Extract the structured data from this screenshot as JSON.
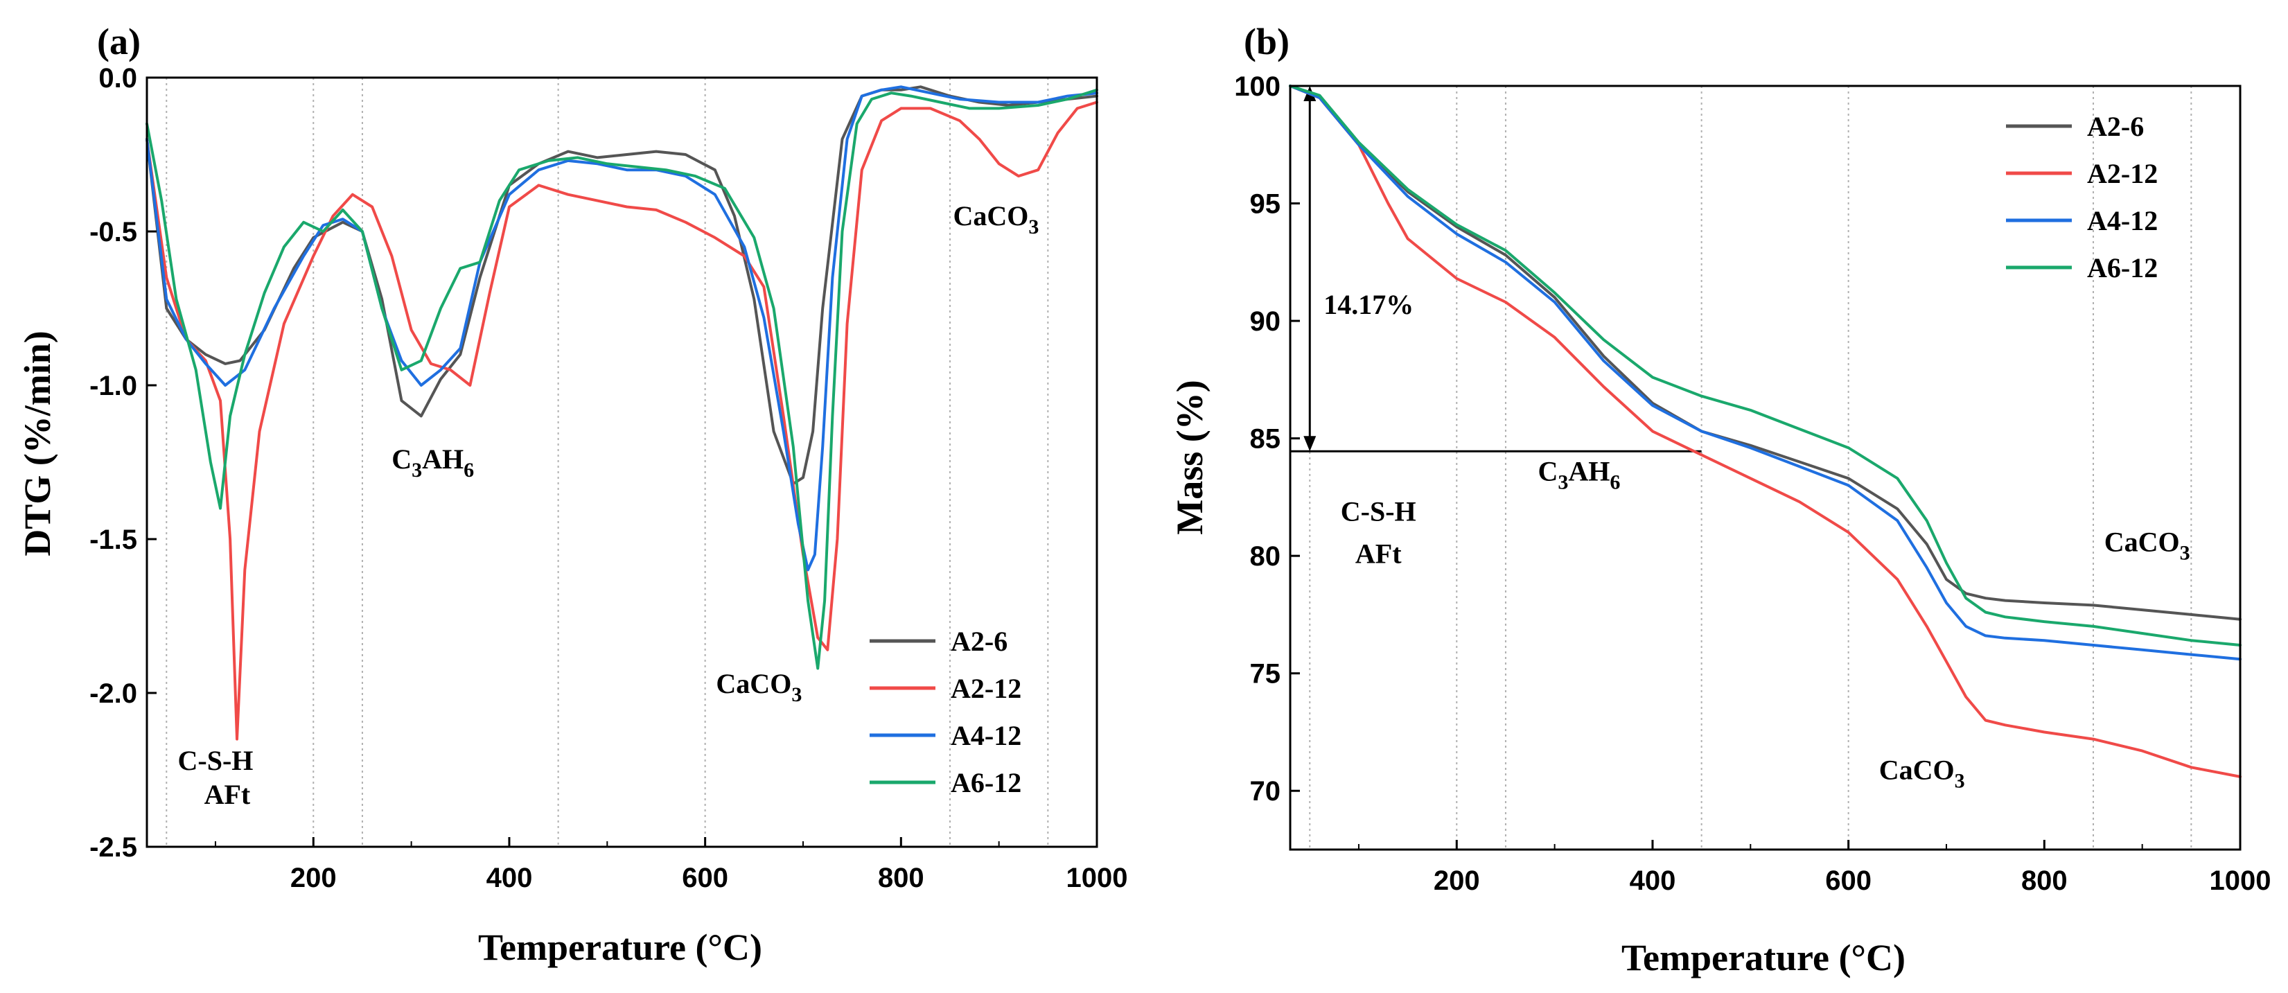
{
  "chart_data": [
    {
      "panel_label": "(a)",
      "type": "line",
      "xlabel": "Temperature (°C)",
      "ylabel": "DTG (%/min)",
      "xlim": [
        30,
        1000
      ],
      "ylim": [
        -2.5,
        0.0
      ],
      "xticks": [
        200,
        400,
        600,
        800,
        1000
      ],
      "yticks": [
        0.0,
        -0.5,
        -1.0,
        -1.5,
        -2.0,
        -2.5
      ],
      "ytick_labels": [
        "0.0",
        "-0.5",
        "-1.0",
        "-1.5",
        "-2.0",
        "-2.5"
      ],
      "guide_lines_x": [
        50,
        200,
        250,
        450,
        600,
        850,
        950
      ],
      "legend_position": "bottom-right",
      "series": [
        {
          "name": "A2-6",
          "color": "#555555",
          "x": [
            30,
            50,
            70,
            90,
            110,
            125,
            150,
            180,
            200,
            230,
            250,
            270,
            290,
            310,
            330,
            350,
            370,
            400,
            430,
            460,
            490,
            520,
            550,
            580,
            610,
            630,
            650,
            670,
            690,
            700,
            710,
            720,
            740,
            760,
            780,
            800,
            820,
            850,
            880,
            910,
            940,
            970,
            1000
          ],
          "y": [
            -0.2,
            -0.75,
            -0.85,
            -0.9,
            -0.93,
            -0.92,
            -0.82,
            -0.62,
            -0.52,
            -0.47,
            -0.5,
            -0.72,
            -1.05,
            -1.1,
            -0.98,
            -0.9,
            -0.65,
            -0.35,
            -0.28,
            -0.24,
            -0.26,
            -0.25,
            -0.24,
            -0.25,
            -0.3,
            -0.45,
            -0.72,
            -1.15,
            -1.32,
            -1.3,
            -1.15,
            -0.75,
            -0.2,
            -0.06,
            -0.04,
            -0.04,
            -0.03,
            -0.06,
            -0.08,
            -0.09,
            -0.08,
            -0.07,
            -0.06
          ]
        },
        {
          "name": "A2-12",
          "color": "#f04a48",
          "x": [
            30,
            50,
            70,
            90,
            105,
            115,
            122,
            130,
            145,
            170,
            200,
            220,
            240,
            260,
            280,
            300,
            320,
            340,
            360,
            380,
            400,
            430,
            460,
            490,
            520,
            550,
            580,
            610,
            640,
            660,
            680,
            700,
            715,
            725,
            735,
            745,
            760,
            780,
            800,
            830,
            860,
            880,
            900,
            920,
            940,
            960,
            980,
            1000
          ],
          "y": [
            -0.2,
            -0.65,
            -0.85,
            -0.92,
            -1.05,
            -1.5,
            -2.15,
            -1.6,
            -1.15,
            -0.8,
            -0.58,
            -0.45,
            -0.38,
            -0.42,
            -0.58,
            -0.82,
            -0.93,
            -0.95,
            -1.0,
            -0.7,
            -0.42,
            -0.35,
            -0.38,
            -0.4,
            -0.42,
            -0.43,
            -0.47,
            -0.52,
            -0.58,
            -0.68,
            -1.1,
            -1.55,
            -1.82,
            -1.86,
            -1.5,
            -0.8,
            -0.3,
            -0.14,
            -0.1,
            -0.1,
            -0.14,
            -0.2,
            -0.28,
            -0.32,
            -0.3,
            -0.18,
            -0.1,
            -0.08
          ]
        },
        {
          "name": "A4-12",
          "color": "#1f6fe0",
          "x": [
            30,
            50,
            70,
            90,
            110,
            130,
            160,
            190,
            210,
            230,
            250,
            270,
            290,
            310,
            330,
            350,
            370,
            400,
            430,
            460,
            490,
            520,
            550,
            580,
            610,
            640,
            660,
            680,
            695,
            705,
            712,
            720,
            730,
            745,
            760,
            780,
            800,
            830,
            860,
            900,
            940,
            970,
            1000
          ],
          "y": [
            -0.2,
            -0.72,
            -0.85,
            -0.93,
            -1.0,
            -0.95,
            -0.75,
            -0.58,
            -0.48,
            -0.46,
            -0.5,
            -0.75,
            -0.92,
            -1.0,
            -0.95,
            -0.88,
            -0.6,
            -0.38,
            -0.3,
            -0.27,
            -0.28,
            -0.3,
            -0.3,
            -0.32,
            -0.38,
            -0.55,
            -0.78,
            -1.15,
            -1.45,
            -1.6,
            -1.55,
            -1.2,
            -0.65,
            -0.2,
            -0.06,
            -0.04,
            -0.03,
            -0.05,
            -0.07,
            -0.08,
            -0.08,
            -0.06,
            -0.05
          ]
        },
        {
          "name": "A6-12",
          "color": "#1aa86c",
          "x": [
            30,
            45,
            60,
            80,
            95,
            105,
            115,
            130,
            150,
            170,
            190,
            210,
            230,
            250,
            270,
            290,
            310,
            330,
            350,
            370,
            390,
            410,
            440,
            470,
            500,
            530,
            560,
            590,
            620,
            650,
            670,
            690,
            705,
            715,
            722,
            730,
            740,
            755,
            770,
            790,
            810,
            840,
            870,
            900,
            940,
            970,
            1000
          ],
          "y": [
            -0.15,
            -0.4,
            -0.72,
            -0.95,
            -1.25,
            -1.4,
            -1.1,
            -0.9,
            -0.7,
            -0.55,
            -0.47,
            -0.5,
            -0.43,
            -0.5,
            -0.75,
            -0.95,
            -0.92,
            -0.75,
            -0.62,
            -0.6,
            -0.4,
            -0.3,
            -0.27,
            -0.26,
            -0.28,
            -0.29,
            -0.3,
            -0.32,
            -0.36,
            -0.52,
            -0.75,
            -1.2,
            -1.7,
            -1.92,
            -1.7,
            -1.1,
            -0.5,
            -0.15,
            -0.07,
            -0.05,
            -0.06,
            -0.08,
            -0.1,
            -0.1,
            -0.09,
            -0.07,
            -0.04
          ]
        }
      ],
      "annotations": [
        {
          "text": "C-S-H",
          "x": 100,
          "y": -2.25
        },
        {
          "text": "AFt",
          "x": 112,
          "y": -2.36
        },
        {
          "text": "C3AH6",
          "base": "C",
          "sub1": "3",
          "mid": "AH",
          "sub2": "6",
          "x": 322,
          "y": -1.27
        },
        {
          "text": "CaCO3",
          "base": "CaCO",
          "sub1": "3",
          "x": 655,
          "y": -2.0
        },
        {
          "text": "CaCO3",
          "base": "CaCO",
          "sub1": "3",
          "x": 897,
          "y": -0.48
        }
      ]
    },
    {
      "panel_label": "(b)",
      "type": "line",
      "xlabel": "Temperature (°C)",
      "ylabel": "Mass (%)",
      "xlim": [
        30,
        1000
      ],
      "ylim": [
        67.5,
        100
      ],
      "xticks": [
        200,
        400,
        600,
        800,
        1000
      ],
      "yticks": [
        100,
        95,
        90,
        85,
        80,
        75,
        70
      ],
      "ytick_labels": [
        "100",
        "95",
        "90",
        "85",
        "80",
        "75",
        "70"
      ],
      "guide_lines_x": [
        50,
        200,
        250,
        450,
        600,
        850,
        950
      ],
      "legend_position": "top-right",
      "series": [
        {
          "name": "A2-6",
          "color": "#555555",
          "x": [
            30,
            60,
            100,
            150,
            200,
            250,
            300,
            350,
            400,
            450,
            500,
            550,
            600,
            650,
            680,
            700,
            720,
            740,
            760,
            800,
            850,
            900,
            950,
            1000
          ],
          "y": [
            100,
            99.5,
            97.5,
            95.5,
            94.0,
            92.8,
            91.0,
            88.5,
            86.5,
            85.3,
            84.7,
            84.0,
            83.3,
            82.0,
            80.5,
            79.0,
            78.4,
            78.2,
            78.1,
            78.0,
            77.9,
            77.7,
            77.5,
            77.3
          ]
        },
        {
          "name": "A2-12",
          "color": "#f04a48",
          "x": [
            30,
            60,
            100,
            130,
            150,
            200,
            250,
            300,
            350,
            400,
            450,
            500,
            550,
            600,
            650,
            680,
            700,
            720,
            740,
            760,
            800,
            850,
            900,
            950,
            1000
          ],
          "y": [
            100,
            99.5,
            97.5,
            95.0,
            93.5,
            91.8,
            90.8,
            89.3,
            87.2,
            85.3,
            84.3,
            83.3,
            82.3,
            81.0,
            79.0,
            77.0,
            75.5,
            74.0,
            73.0,
            72.8,
            72.5,
            72.2,
            71.7,
            71.0,
            70.6
          ]
        },
        {
          "name": "A4-12",
          "color": "#1f6fe0",
          "x": [
            30,
            60,
            100,
            150,
            200,
            250,
            300,
            350,
            400,
            450,
            500,
            550,
            600,
            650,
            680,
            700,
            720,
            740,
            760,
            800,
            850,
            900,
            950,
            1000
          ],
          "y": [
            100,
            99.5,
            97.5,
            95.3,
            93.7,
            92.5,
            90.8,
            88.3,
            86.4,
            85.3,
            84.6,
            83.8,
            83.0,
            81.5,
            79.5,
            78.0,
            77.0,
            76.6,
            76.5,
            76.4,
            76.2,
            76.0,
            75.8,
            75.6
          ]
        },
        {
          "name": "A6-12",
          "color": "#1aa86c",
          "x": [
            30,
            60,
            100,
            150,
            200,
            250,
            300,
            350,
            400,
            450,
            500,
            550,
            600,
            650,
            680,
            700,
            720,
            740,
            760,
            800,
            850,
            900,
            950,
            1000
          ],
          "y": [
            100,
            99.6,
            97.6,
            95.6,
            94.1,
            93.0,
            91.2,
            89.2,
            87.6,
            86.8,
            86.2,
            85.4,
            84.6,
            83.3,
            81.5,
            79.7,
            78.2,
            77.6,
            77.4,
            77.2,
            77.0,
            76.7,
            76.4,
            76.2
          ]
        }
      ],
      "bracket": {
        "label": "14.17%",
        "x": 50,
        "y_top": 100,
        "y_bottom": 84.45,
        "x_end": 450
      },
      "annotations": [
        {
          "text": "C-S-H",
          "x": 120,
          "y": 81.5
        },
        {
          "text": "AFt",
          "x": 120,
          "y": 79.7
        },
        {
          "text": "C3AH6",
          "base": "C",
          "sub1": "3",
          "mid": "AH",
          "sub2": "6",
          "x": 325,
          "y": 83.2
        },
        {
          "text": "CaCO3",
          "base": "CaCO",
          "sub1": "3",
          "x": 675,
          "y": 70.5
        },
        {
          "text": "CaCO3",
          "base": "CaCO",
          "sub1": "3",
          "x": 905,
          "y": 80.2
        }
      ]
    }
  ]
}
